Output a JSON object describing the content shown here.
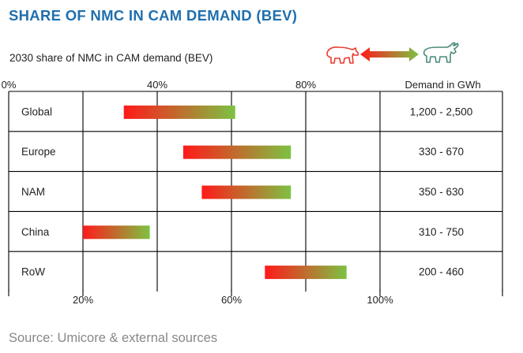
{
  "title": "SHARE OF NMC IN CAM DEMAND (BEV)",
  "subtitle": "2030 share of NMC in CAM demand (BEV)",
  "source": "Source: Umicore & external sources",
  "icons": {
    "bear": "bear-icon",
    "arrow": "double-arrow-icon",
    "bull": "bull-icon"
  },
  "colors": {
    "title": "#1f6fae",
    "range_start": "#ff1a1a",
    "range_end": "#7dc242",
    "bear": "#e83a2e",
    "bull": "#4a8a7a"
  },
  "chart_data": {
    "type": "bar",
    "subtype": "floating-range",
    "title": "2030 share of NMC in CAM demand (BEV)",
    "xlim": [
      0,
      100
    ],
    "top_ticks": [
      "0%",
      "40%",
      "80%"
    ],
    "bottom_ticks": [
      "20%",
      "60%",
      "100%"
    ],
    "demand_header": "Demand in GWh",
    "categories": [
      "Global",
      "Europe",
      "NAM",
      "China",
      "RoW"
    ],
    "ranges": [
      [
        31,
        61
      ],
      [
        47,
        76
      ],
      [
        52,
        76
      ],
      [
        20,
        38
      ],
      [
        69,
        91
      ]
    ],
    "demand": [
      "1,200 - 2,500",
      "330 - 670",
      "350 - 630",
      "310 - 750",
      "200 - 460"
    ],
    "grid": true
  }
}
